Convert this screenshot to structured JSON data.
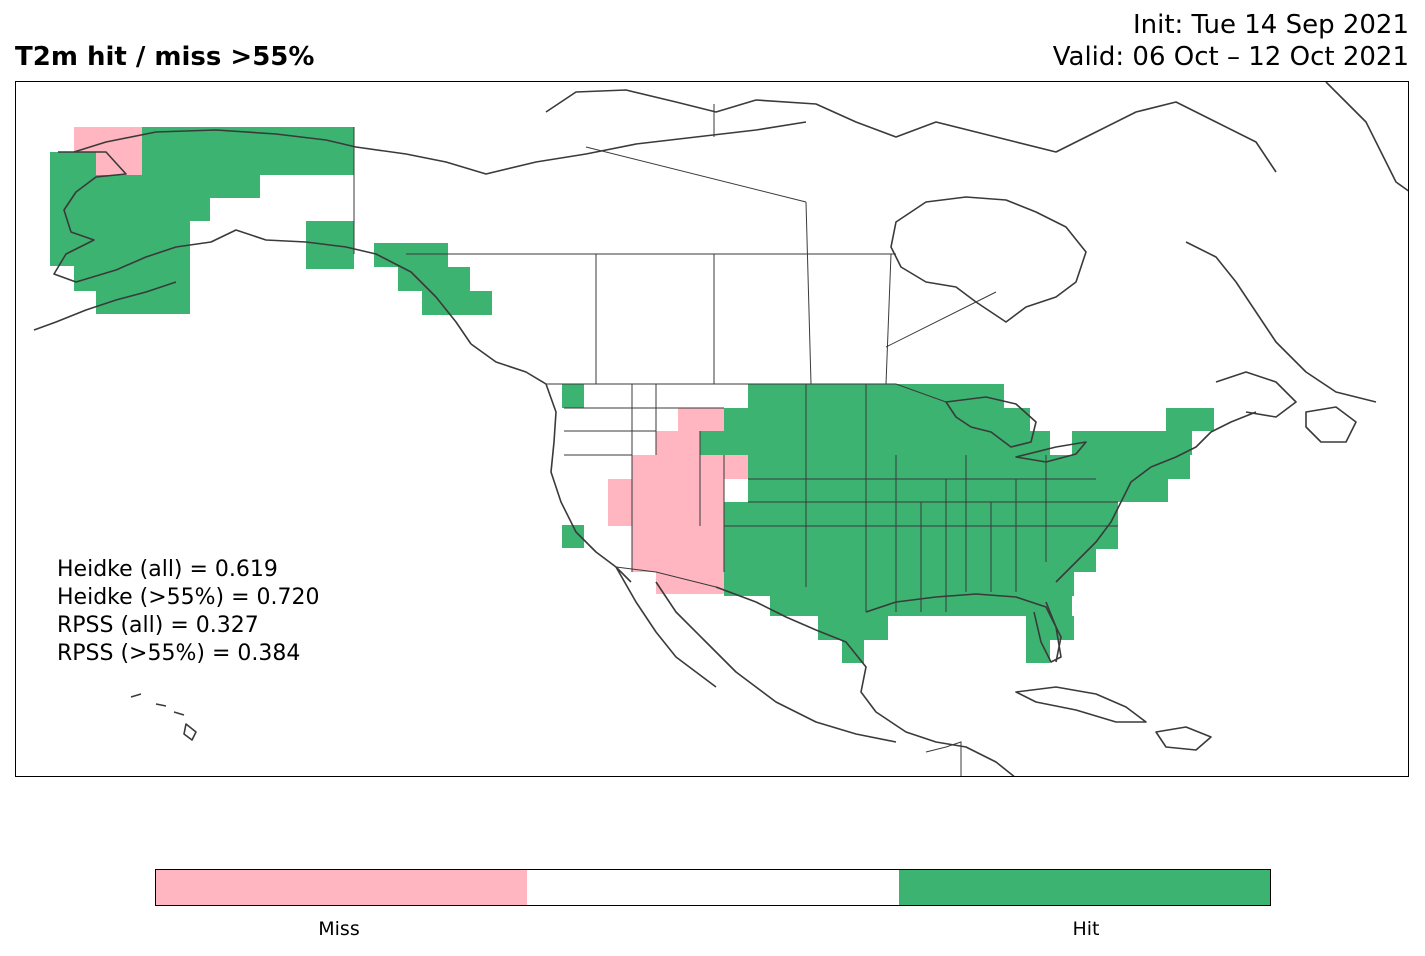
{
  "header": {
    "title": "T2m hit / miss  >55%",
    "init": "Init: Tue 14 Sep 2021",
    "valid": "Valid: 06 Oct – 12 Oct 2021"
  },
  "scores": [
    "Heidke (all) = 0.619",
    "Heidke (>55%) = 0.720",
    "RPSS (all) = 0.327",
    "RPSS (>55%) = 0.384"
  ],
  "legend": {
    "miss_label": "Miss",
    "hit_label": "Hit",
    "colors": {
      "miss": "#ffb6c1",
      "neutral": "#ffffff",
      "hit": "#3cb371"
    }
  },
  "map": {
    "coastline_color": "#3a3a3a",
    "border_color": "#3a3a3a"
  }
}
